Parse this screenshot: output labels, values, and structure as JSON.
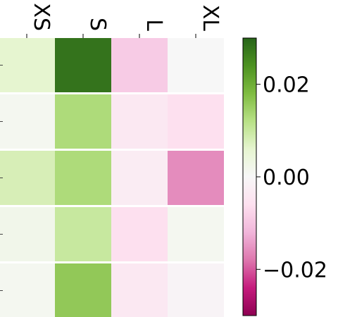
{
  "chart_data": {
    "type": "heatmap",
    "title": "",
    "xlabel": "",
    "ylabel": "",
    "x_categories": [
      "XS",
      "S",
      "L",
      "XL"
    ],
    "rows": 5,
    "values": [
      [
        0.006,
        0.028,
        -0.009,
        0.0
      ],
      [
        0.001,
        0.013,
        -0.004,
        -0.006
      ],
      [
        0.008,
        0.013,
        -0.003,
        -0.016
      ],
      [
        0.002,
        0.01,
        -0.006,
        0.001
      ],
      [
        0.001,
        0.016,
        -0.004,
        -0.001
      ]
    ],
    "colormap": "PiYG",
    "vmin": -0.03,
    "vmax": 0.03,
    "colorbar": {
      "ticks": [
        0.02,
        0.0,
        -0.02
      ],
      "tick_labels": [
        "0.02",
        "0.00",
        "−0.02"
      ]
    },
    "grid": false,
    "cell_separator_color": "#ffffff"
  }
}
